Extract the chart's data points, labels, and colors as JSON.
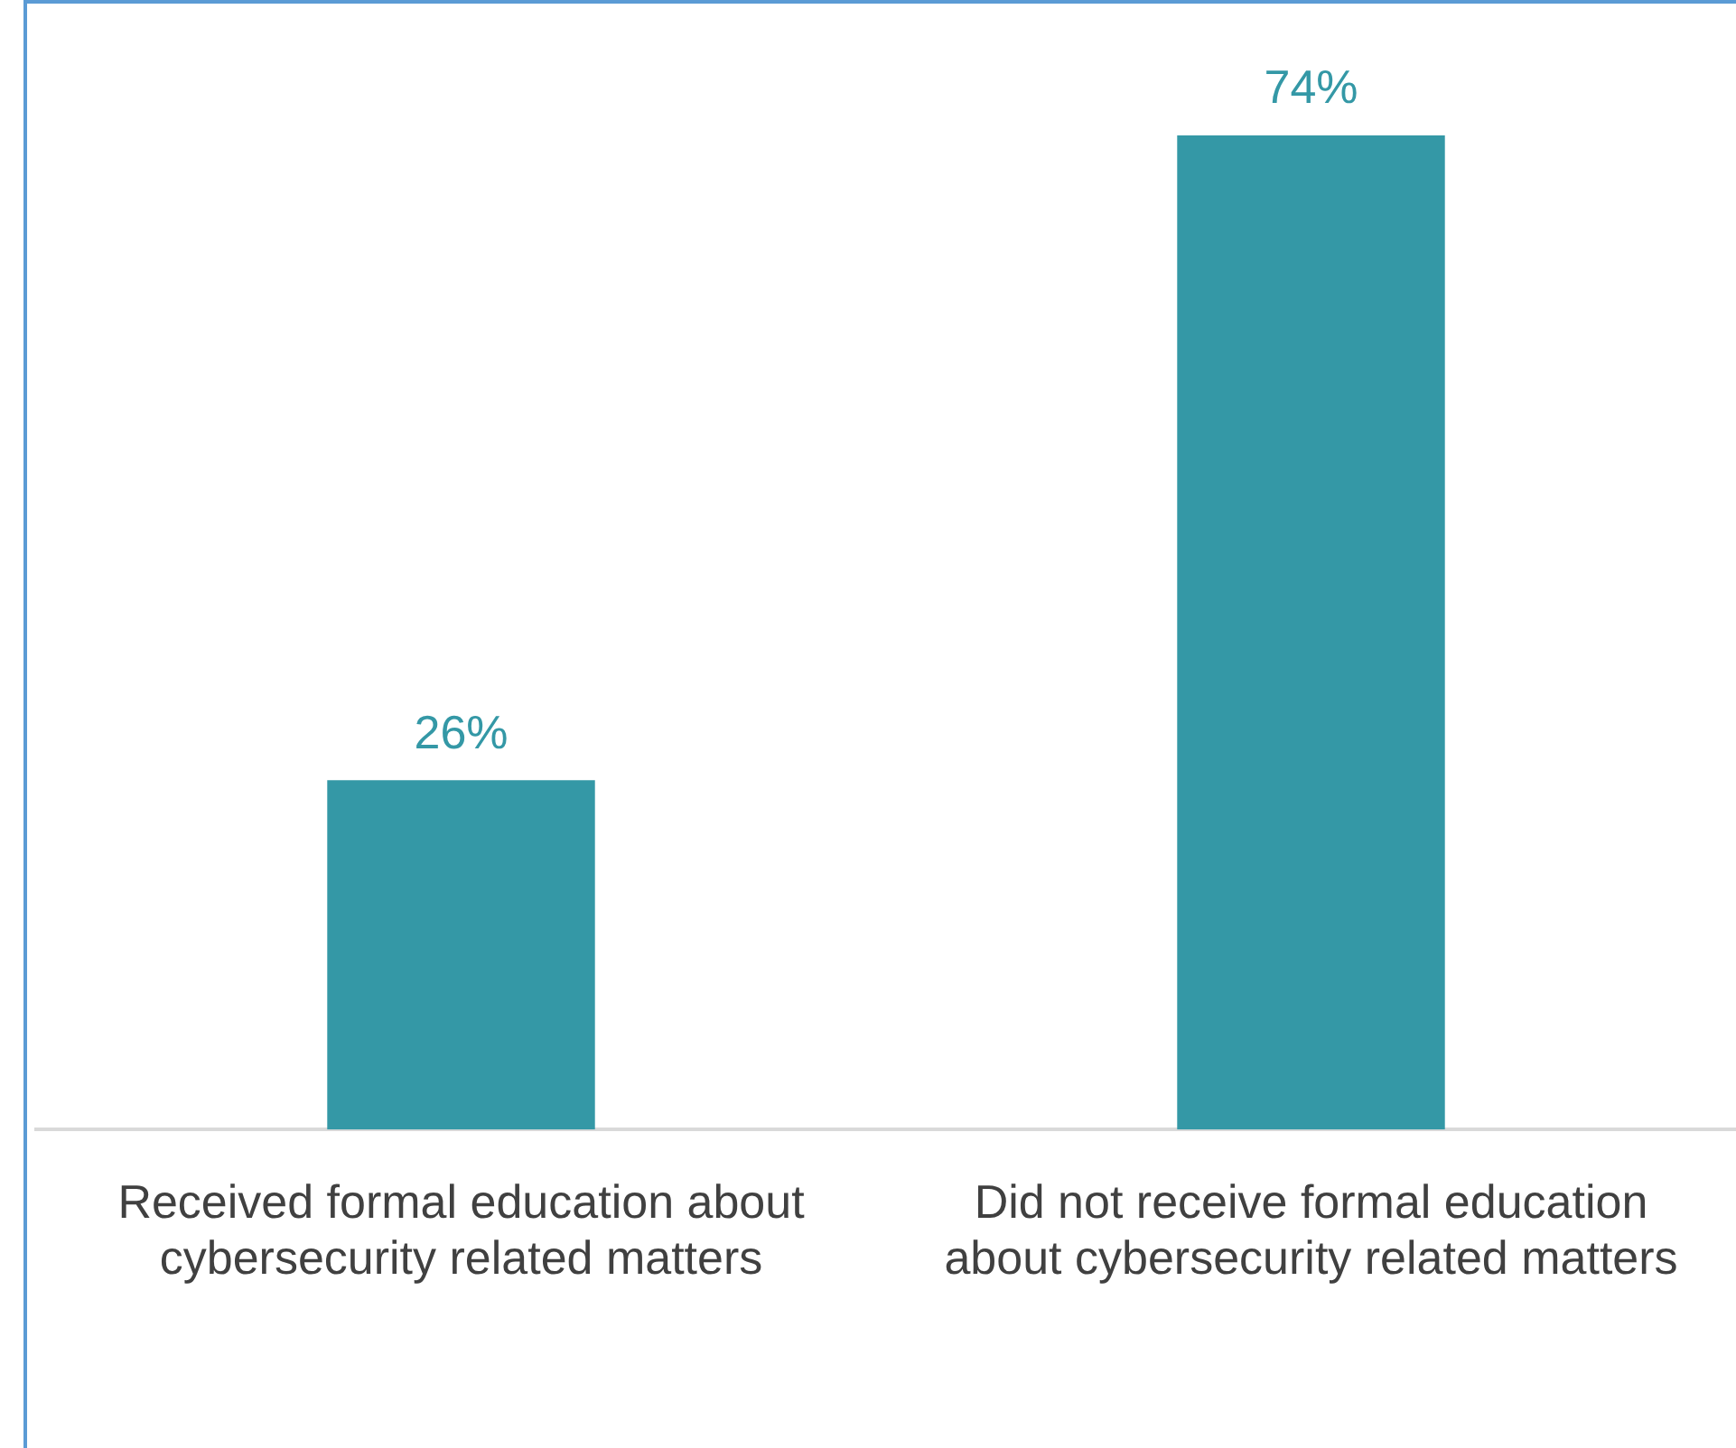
{
  "chart_data": {
    "type": "bar",
    "categories": [
      "Received formal education about cybersecurity related matters",
      "Did not receive formal education about cybersecurity related matters"
    ],
    "values": [
      26,
      74
    ],
    "value_labels": [
      "26%",
      "74%"
    ],
    "color": "#3498a6",
    "grid": false,
    "legend": false
  }
}
